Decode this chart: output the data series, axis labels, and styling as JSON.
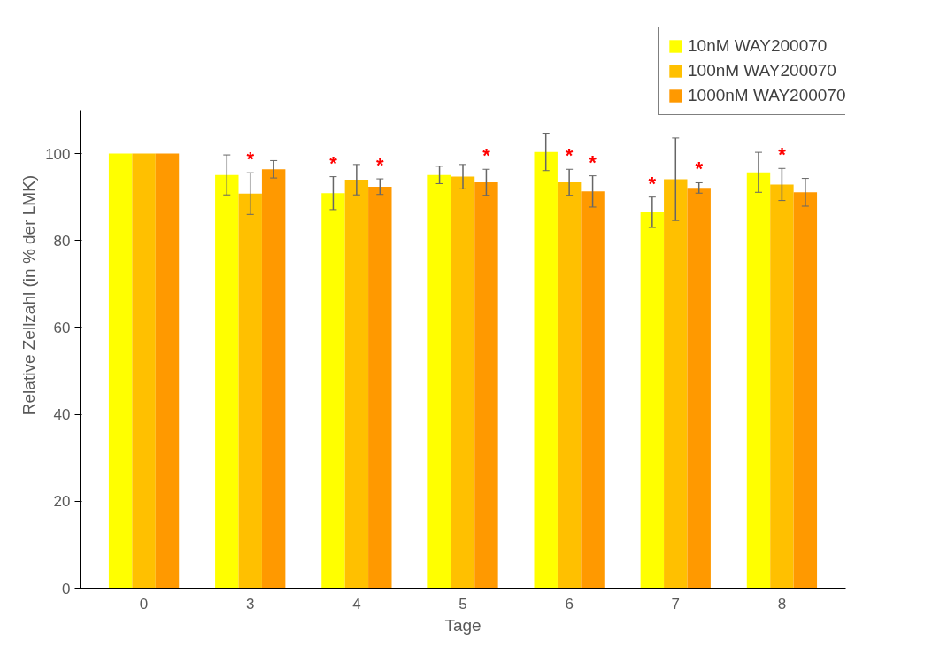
{
  "chart_data": {
    "type": "bar",
    "xlabel": "Tage",
    "ylabel": "Relative Zellzahl (in % der LMK)",
    "categories": [
      "0",
      "3",
      "4",
      "5",
      "6",
      "7",
      "8"
    ],
    "series": [
      {
        "name": "10nM WAY200070",
        "color": "#ffff00",
        "values": [
          100,
          95.1,
          90.9,
          95.1,
          100.4,
          86.5,
          95.7
        ],
        "errors": [
          null,
          4.6,
          3.8,
          2.0,
          4.3,
          3.5,
          4.6
        ]
      },
      {
        "name": "100nM WAY200070",
        "color": "#ffc000",
        "values": [
          100,
          90.8,
          94.0,
          94.7,
          93.4,
          94.1,
          92.9
        ],
        "errors": [
          null,
          4.8,
          3.5,
          2.8,
          3.0,
          9.5,
          3.7
        ]
      },
      {
        "name": "1000nM WAY200070",
        "color": "#ff9900",
        "values": [
          100,
          96.4,
          92.4,
          93.4,
          91.3,
          92.1,
          91.1
        ],
        "errors": [
          null,
          2.0,
          1.8,
          3.0,
          3.6,
          1.2,
          3.2
        ]
      }
    ],
    "ylim": [
      0,
      110
    ],
    "yticks": [
      0,
      20,
      40,
      60,
      80,
      100
    ],
    "grid": false,
    "legend": "top right",
    "annotations": [
      {
        "text": "*",
        "x": "3",
        "y": 95.6
      },
      {
        "text": "*",
        "x": "4",
        "y": 94.7
      },
      {
        "text": "*",
        "x": "4",
        "y": 94.2
      },
      {
        "text": "*",
        "x": "5",
        "y": 96.4
      },
      {
        "text": "*",
        "x": "6",
        "y": 96.4
      },
      {
        "text": "*",
        "x": "6",
        "y": 94.9
      },
      {
        "text": "*",
        "x": "7",
        "y": 90.0
      },
      {
        "text": "*",
        "x": "7",
        "y": 93.3
      },
      {
        "text": "*",
        "x": "8",
        "y": 96.6
      }
    ]
  }
}
